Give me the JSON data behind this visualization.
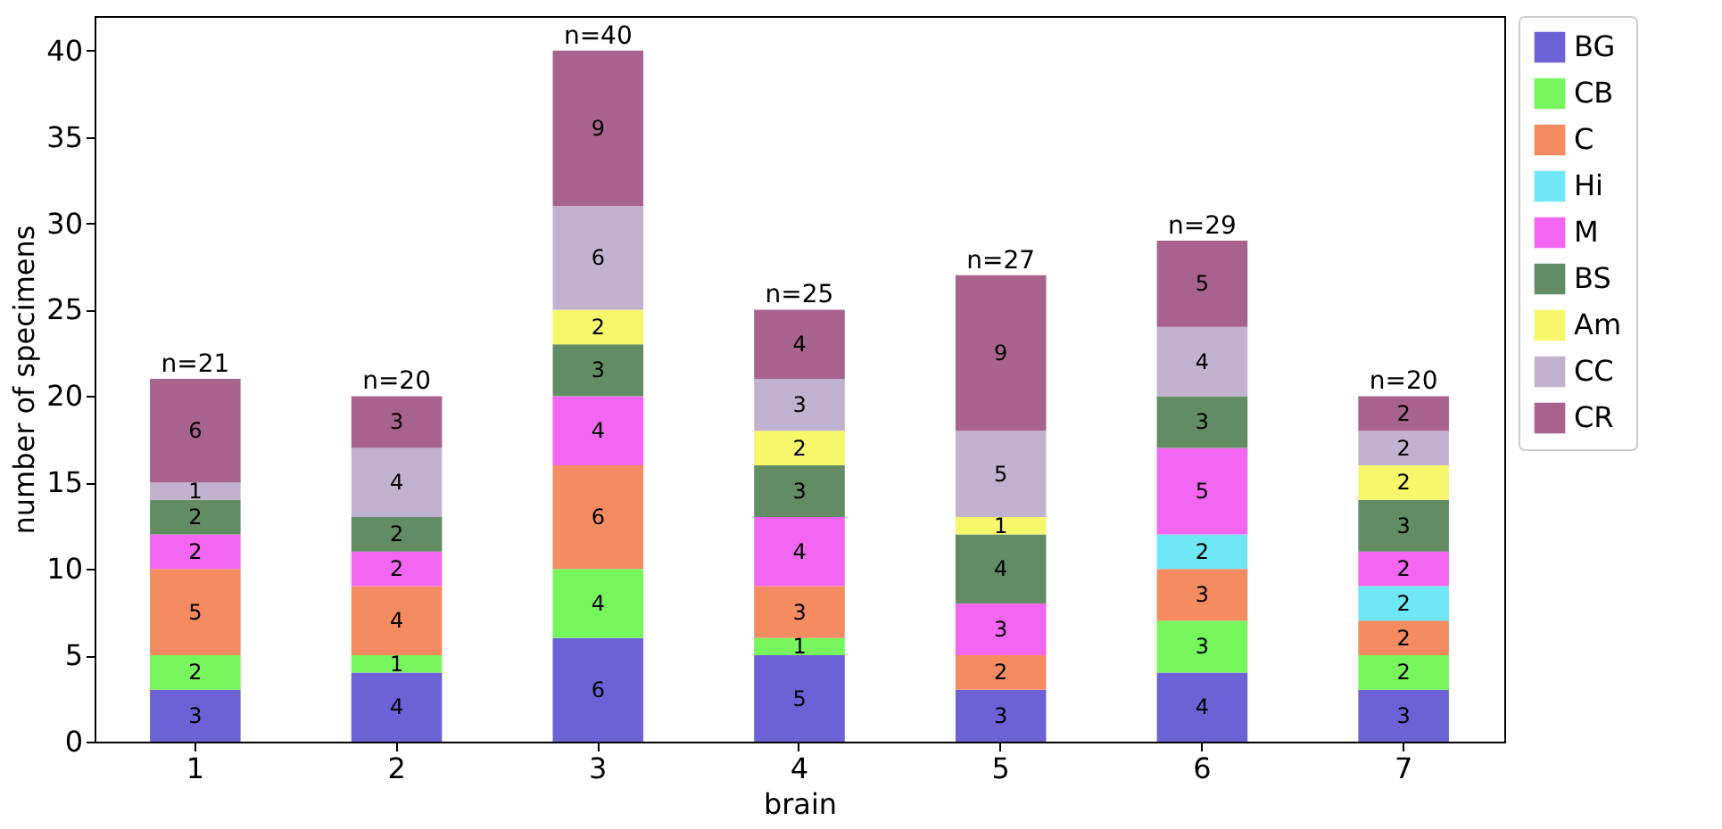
{
  "chart_data": {
    "type": "bar",
    "stacked": true,
    "xlabel": "brain",
    "ylabel": "number of specimens",
    "categories": [
      "1",
      "2",
      "3",
      "4",
      "5",
      "6",
      "7"
    ],
    "series": [
      {
        "name": "BG",
        "color": "#6c62d6",
        "values": [
          3,
          4,
          6,
          5,
          3,
          4,
          3
        ]
      },
      {
        "name": "CB",
        "color": "#76f55c",
        "values": [
          2,
          1,
          4,
          1,
          null,
          3,
          2
        ]
      },
      {
        "name": "C",
        "color": "#f58b60",
        "values": [
          5,
          4,
          6,
          3,
          2,
          3,
          2
        ]
      },
      {
        "name": "Hi",
        "color": "#6fe7f5",
        "values": [
          null,
          null,
          null,
          null,
          null,
          2,
          2
        ]
      },
      {
        "name": "M",
        "color": "#f266f2",
        "values": [
          2,
          2,
          4,
          4,
          3,
          5,
          2
        ]
      },
      {
        "name": "BS",
        "color": "#628c64",
        "values": [
          2,
          2,
          3,
          3,
          4,
          3,
          3
        ]
      },
      {
        "name": "Am",
        "color": "#f7f76b",
        "values": [
          null,
          null,
          2,
          2,
          1,
          null,
          2
        ]
      },
      {
        "name": "CC",
        "color": "#c1b3cf",
        "values": [
          1,
          4,
          6,
          3,
          5,
          4,
          2
        ]
      },
      {
        "name": "CR",
        "color": "#a8628e",
        "values": [
          6,
          3,
          9,
          4,
          9,
          5,
          2
        ]
      }
    ],
    "totals": [
      "n=21",
      "n=20",
      "n=40",
      "n=25",
      "n=27",
      "n=29",
      "n=20"
    ],
    "data_labels": true,
    "ylim": [
      0,
      42
    ],
    "yticks": [
      0,
      5,
      10,
      15,
      20,
      25,
      30,
      35,
      40
    ],
    "grid": false,
    "legend": "right"
  }
}
